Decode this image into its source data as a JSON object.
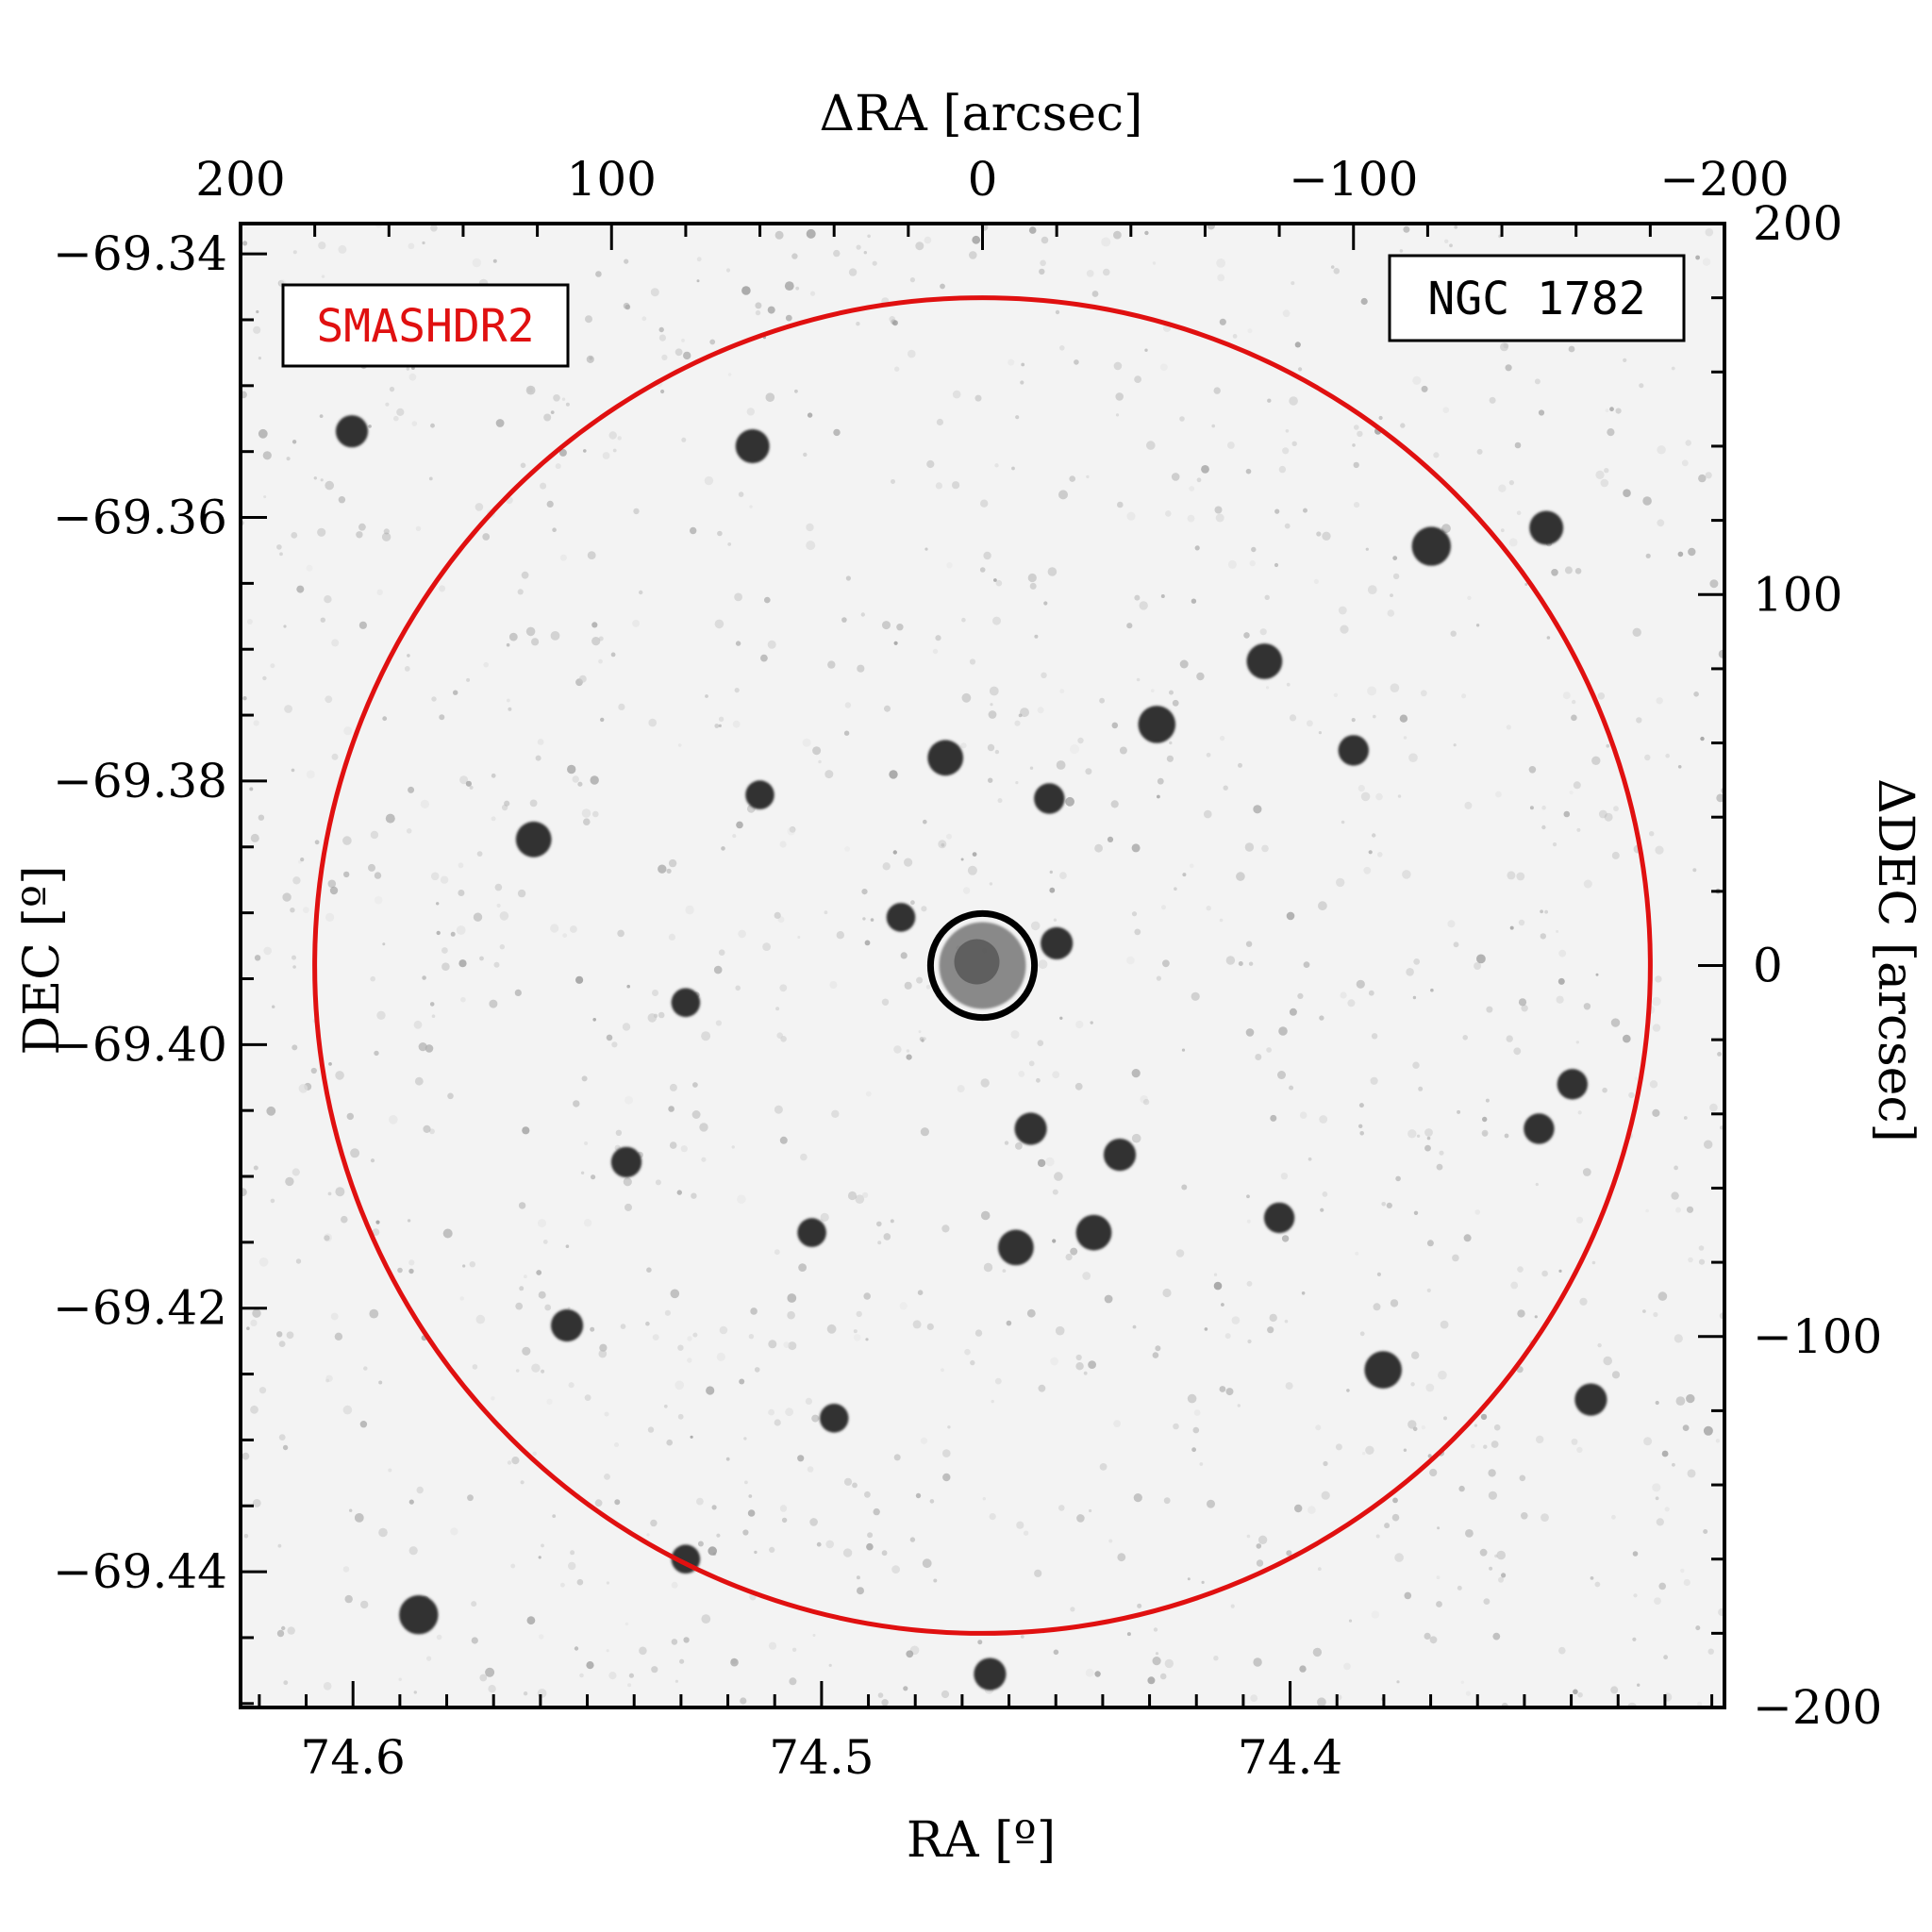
{
  "chart_data": {
    "type": "scatter",
    "image_kind": "inverted greyscale sky image",
    "top_axis": {
      "label": "ΔRA [arcsec]",
      "range": [
        200,
        -200
      ],
      "ticks": [
        200,
        100,
        0,
        -100,
        -200
      ],
      "tick_labels": [
        "200",
        "100",
        "0",
        "−100",
        "−200"
      ]
    },
    "bottom_axis": {
      "label": "RA [º]",
      "range": [
        74.624,
        74.3073
      ],
      "ticks": [
        74.6,
        74.5,
        74.4
      ],
      "tick_labels": [
        "74.6",
        "74.5",
        "74.4"
      ]
    },
    "left_axis": {
      "label": "DEC [º]",
      "range": [
        -69.4503,
        -69.3377
      ],
      "ticks": [
        -69.34,
        -69.36,
        -69.38,
        -69.4,
        -69.42,
        -69.44
      ],
      "tick_labels": [
        "−69.34",
        "−69.36",
        "−69.38",
        "−69.40",
        "−69.42",
        "−69.44"
      ]
    },
    "right_axis": {
      "label": "ΔDEC [arcsec]",
      "range": [
        -200,
        200
      ],
      "ticks": [
        200,
        100,
        0,
        -100,
        -200
      ],
      "tick_labels": [
        "200",
        "100",
        "0",
        "−100",
        "−200"
      ]
    },
    "survey_label": "SMASHDR2",
    "cluster_label": "NGC 1782",
    "circles": [
      {
        "role": "outer",
        "center_dra": 0,
        "center_ddec": 0,
        "radius_arcsec": 180,
        "color": "#e01010"
      },
      {
        "role": "core",
        "center_dra": 0,
        "center_ddec": 0,
        "radius_arcsec": 14,
        "color": "#000000"
      }
    ],
    "bright_stars": [
      {
        "dra": 62,
        "ddec": 140,
        "mag": 1.0
      },
      {
        "dra": -121,
        "ddec": 113,
        "mag": 1.3
      },
      {
        "dra": -152,
        "ddec": 118,
        "mag": 1.0
      },
      {
        "dra": -76,
        "ddec": 82,
        "mag": 1.1
      },
      {
        "dra": -47,
        "ddec": 65,
        "mag": 1.2
      },
      {
        "dra": 10,
        "ddec": 56,
        "mag": 1.1
      },
      {
        "dra": 121,
        "ddec": 34,
        "mag": 1.1
      },
      {
        "dra": -18,
        "ddec": 45,
        "mag": 0.8
      },
      {
        "dra": -20,
        "ddec": 6,
        "mag": 0.9
      },
      {
        "dra": 22,
        "ddec": 13,
        "mag": 0.7
      },
      {
        "dra": -13,
        "ddec": -44,
        "mag": 0.9
      },
      {
        "dra": -37,
        "ddec": -51,
        "mag": 0.9
      },
      {
        "dra": -9,
        "ddec": -76,
        "mag": 1.1
      },
      {
        "dra": -30,
        "ddec": -72,
        "mag": 1.1
      },
      {
        "dra": 112,
        "ddec": -97,
        "mag": 0.9
      },
      {
        "dra": -108,
        "ddec": -109,
        "mag": 1.2
      },
      {
        "dra": 152,
        "ddec": -175,
        "mag": 1.3
      },
      {
        "dra": -2,
        "ddec": -191,
        "mag": 0.9
      },
      {
        "dra": 170,
        "ddec": 144,
        "mag": 0.9
      },
      {
        "dra": -159,
        "ddec": -32,
        "mag": 0.8
      },
      {
        "dra": -164,
        "ddec": -117,
        "mag": 0.9
      },
      {
        "dra": -100,
        "ddec": 58,
        "mag": 0.8
      },
      {
        "dra": 96,
        "ddec": -53,
        "mag": 0.8
      },
      {
        "dra": -80,
        "ddec": -68,
        "mag": 0.8
      },
      {
        "dra": 80,
        "ddec": -10,
        "mag": 0.7
      },
      {
        "dra": 60,
        "ddec": 46,
        "mag": 0.7
      },
      {
        "dra": 46,
        "ddec": -72,
        "mag": 0.7
      },
      {
        "dra": -150,
        "ddec": -44,
        "mag": 0.8
      },
      {
        "dra": 40,
        "ddec": -122,
        "mag": 0.7
      },
      {
        "dra": 80,
        "ddec": -160,
        "mag": 0.7
      }
    ],
    "grid": false
  }
}
